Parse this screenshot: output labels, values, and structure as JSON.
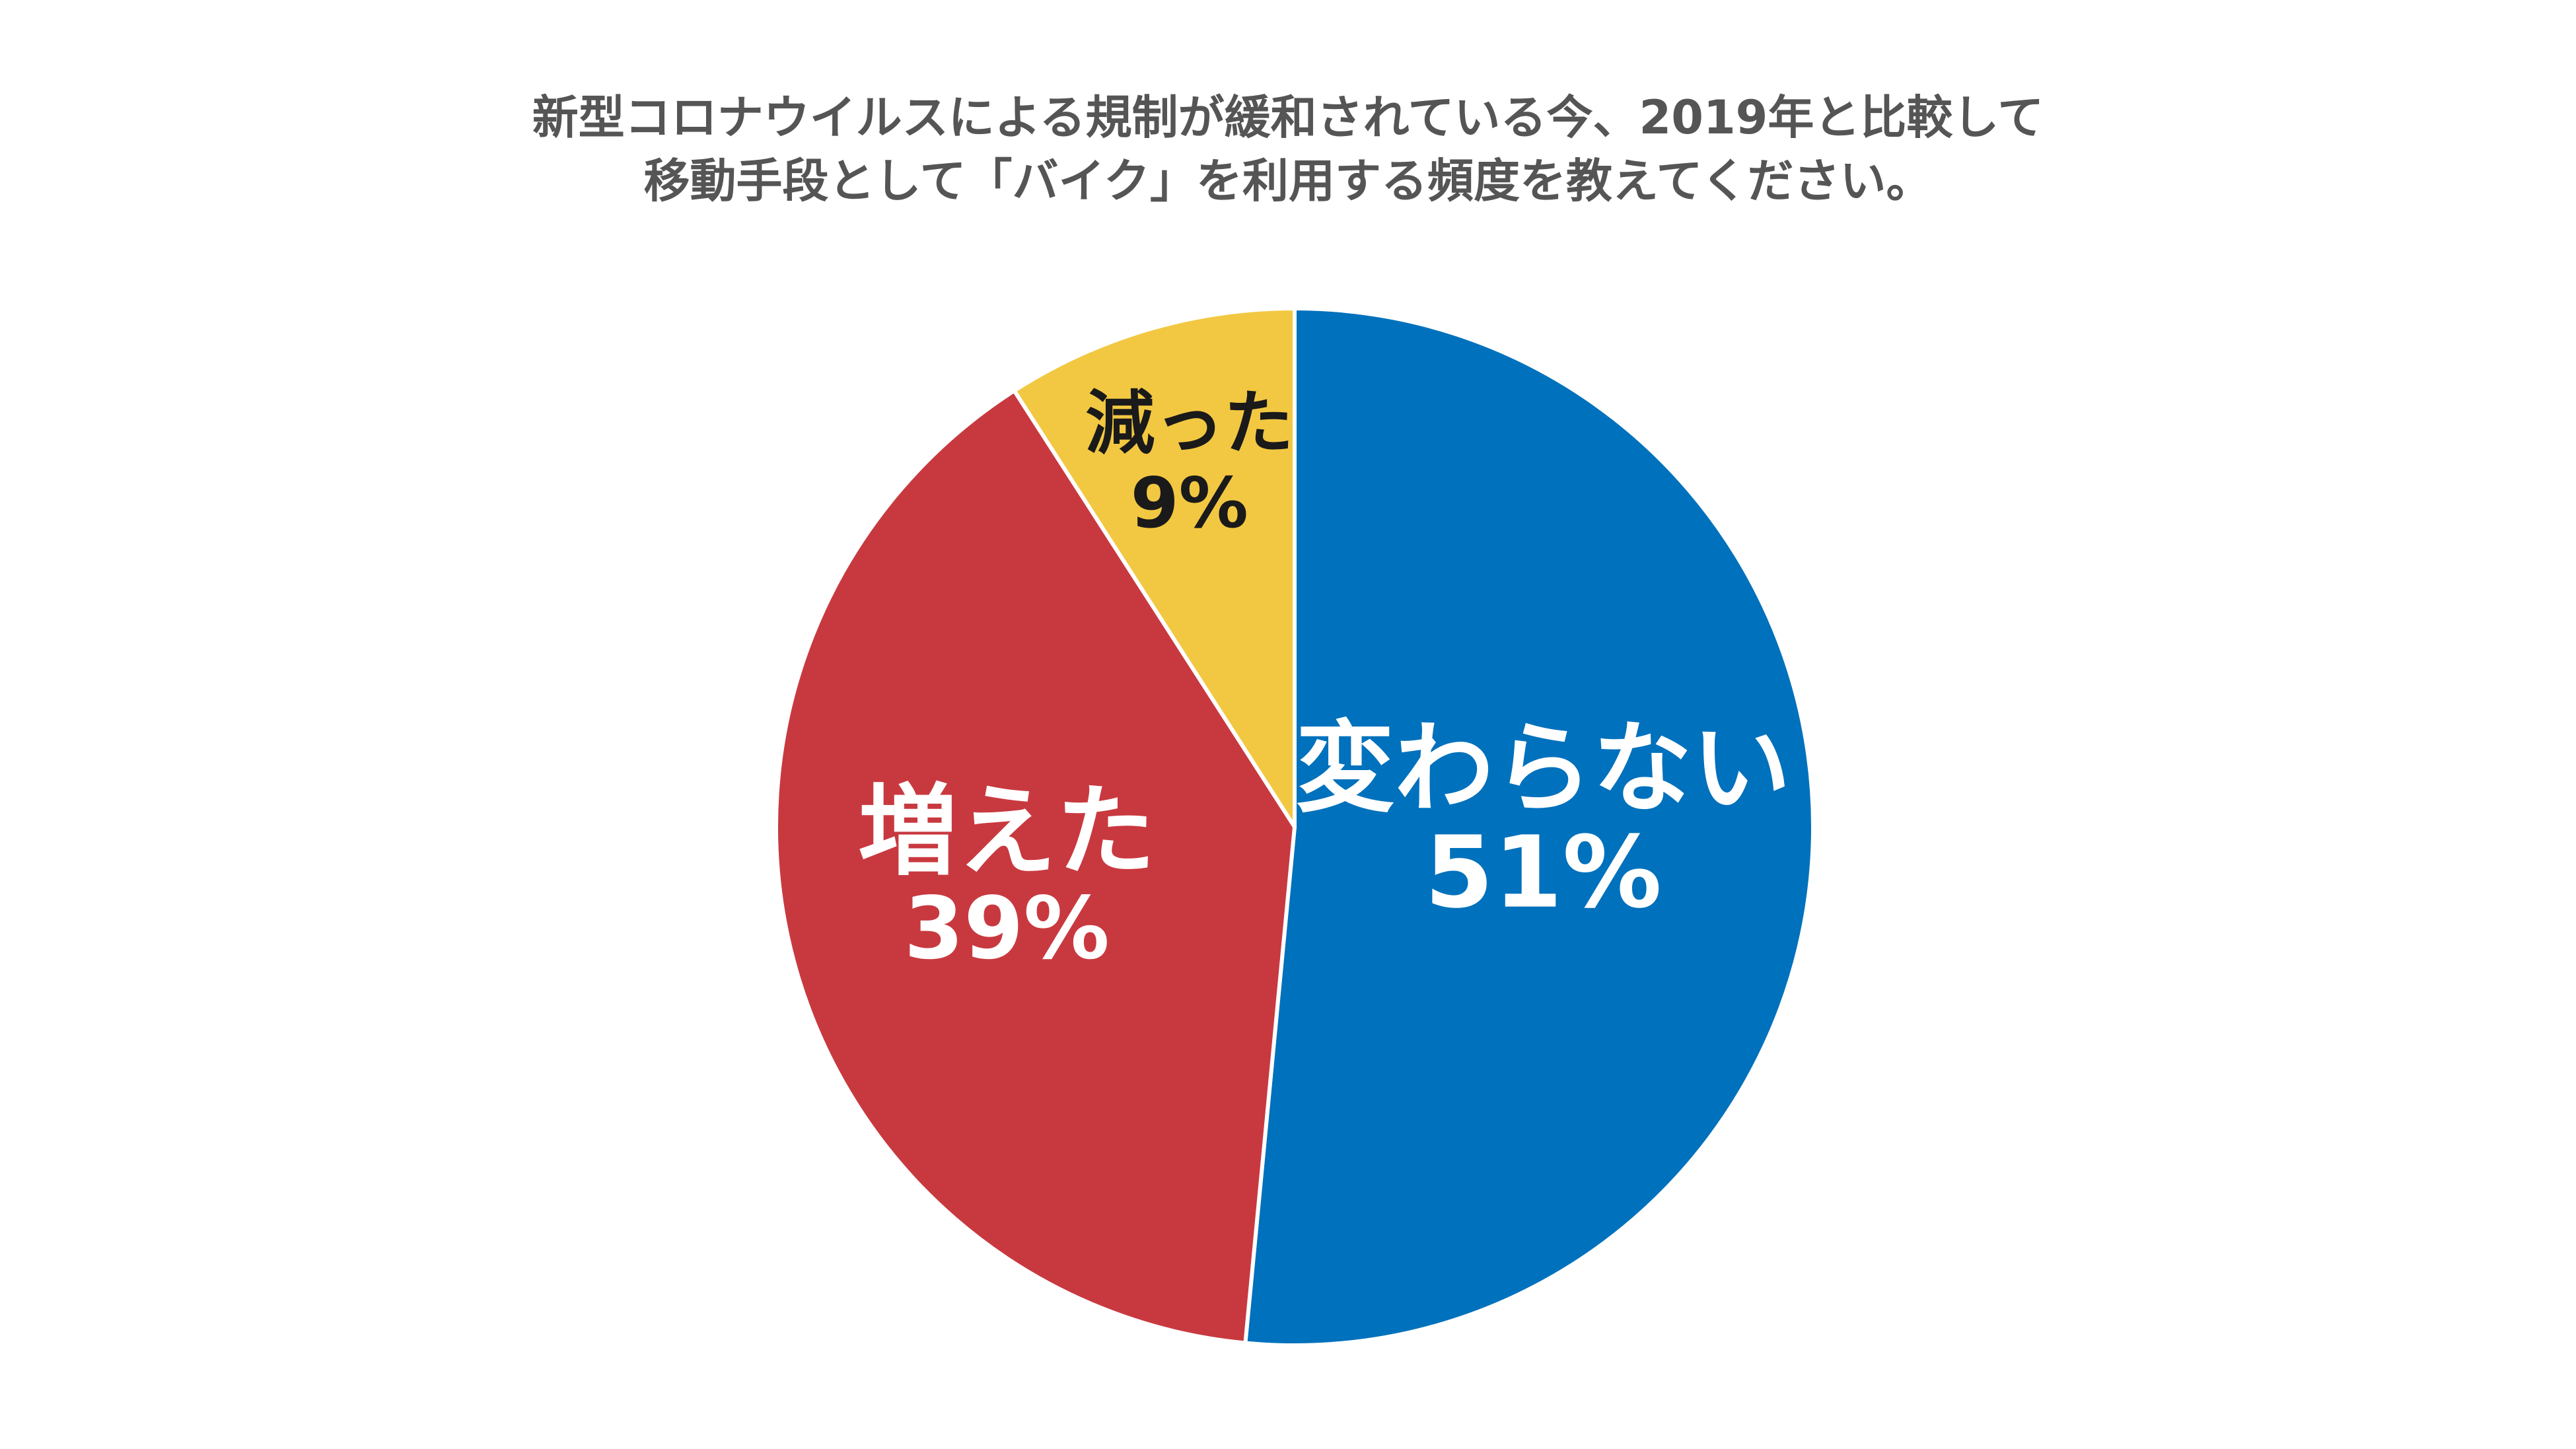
{
  "chart_data": {
    "type": "pie",
    "title": [
      "新型コロナウイルスによる規制が緩和されている今、2019年と比較して",
      "移動手段として「バイク」を利用する頻度を教えてください。"
    ],
    "slices": [
      {
        "label": "変わらない",
        "value": 51,
        "value_label": "51%",
        "color": "#0071BC",
        "text_color": "#FFFFFF"
      },
      {
        "label": "増えた",
        "value": 39,
        "value_label": "39%",
        "color": "#C8393F",
        "text_color": "#FFFFFF"
      },
      {
        "label": "減った",
        "value": 9,
        "value_label": "9%",
        "color": "#F2C842",
        "text_color": "#1A1A1A"
      }
    ],
    "start_angle": "12 o'clock",
    "direction": "clockwise",
    "legend": "none",
    "slice_border_color": "#FFFFFF"
  }
}
